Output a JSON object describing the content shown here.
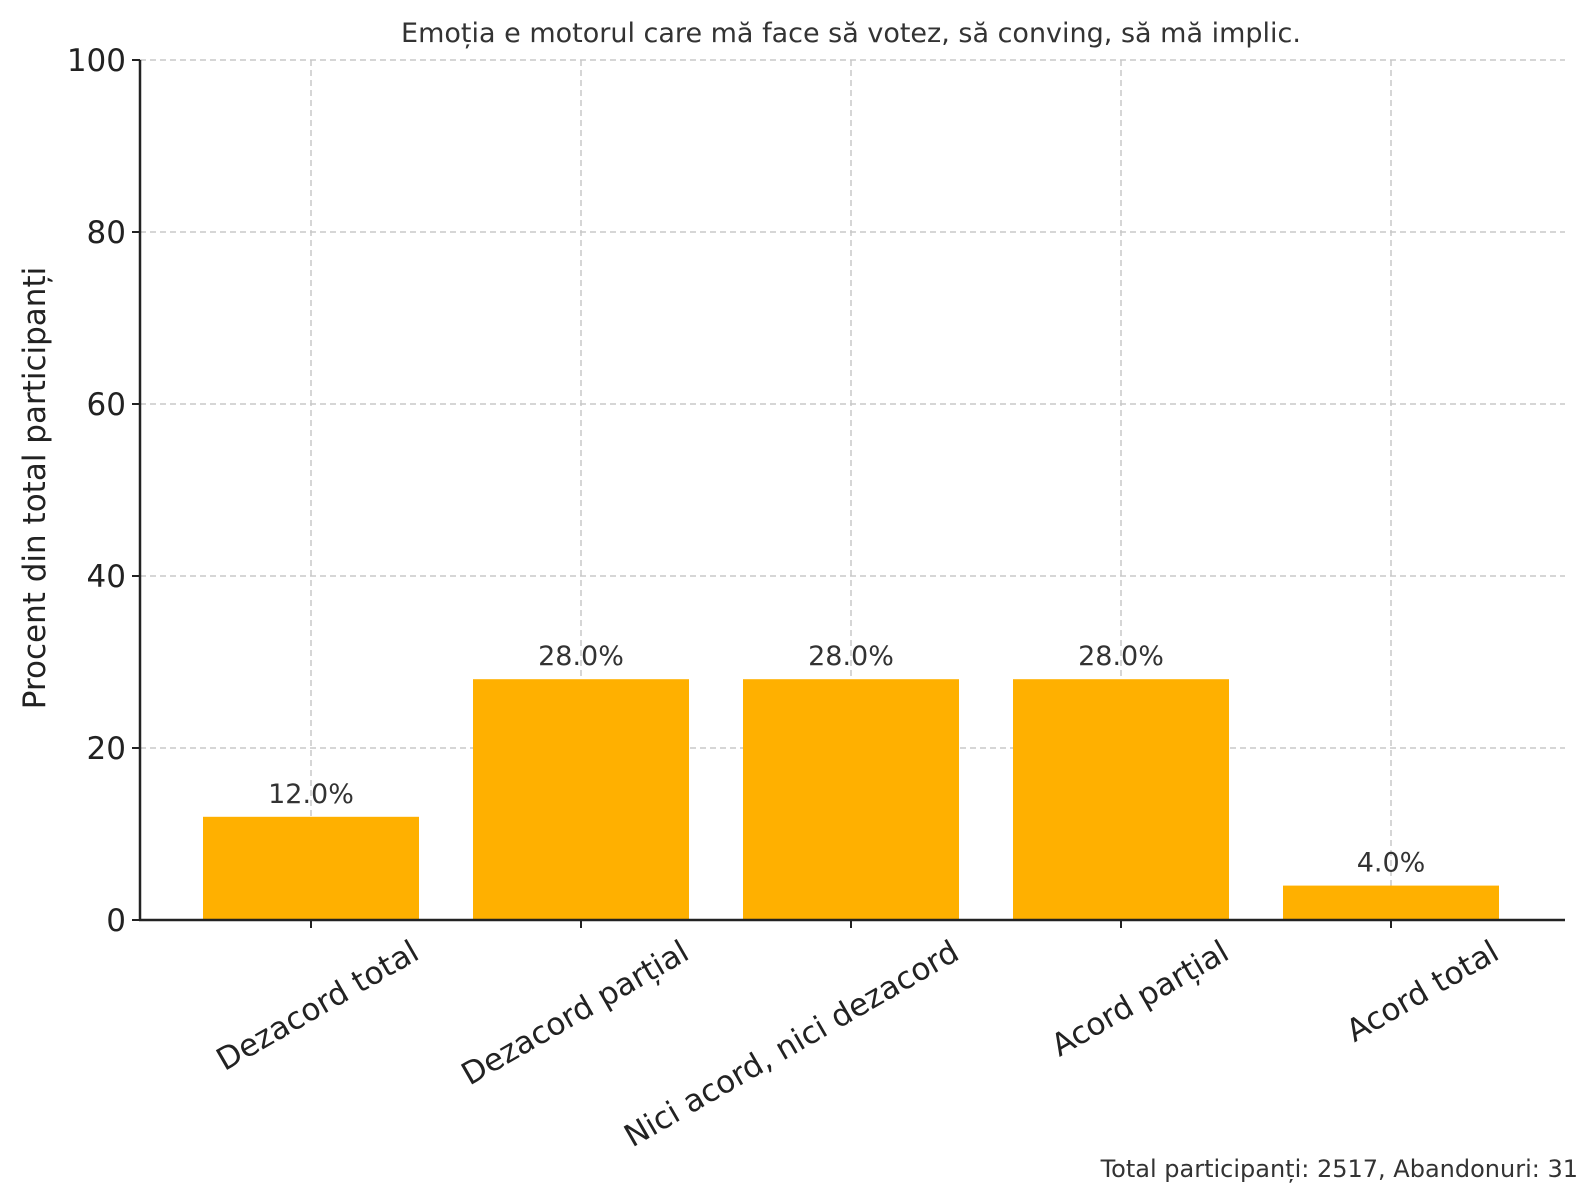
{
  "chart_data": {
    "type": "bar",
    "title": "Emoția e motorul care mă face să votez, să conving, să mă implic.",
    "xlabel": "",
    "ylabel": "Procent din total participanți",
    "categories": [
      "Dezacord total",
      "Dezacord parțial",
      "Nici acord, nici dezacord",
      "Acord parțial",
      "Acord total"
    ],
    "values": [
      12.0,
      28.0,
      28.0,
      28.0,
      4.0
    ],
    "data_labels": [
      "12.0%",
      "28.0%",
      "28.0%",
      "28.0%",
      "4.0%"
    ],
    "ylim": [
      0,
      100
    ],
    "yticks": [
      0,
      20,
      40,
      60,
      80,
      100
    ],
    "grid": true,
    "bar_color": "#FFB000",
    "footnote": "Total participanți: 2517, Abandonuri: 31"
  }
}
